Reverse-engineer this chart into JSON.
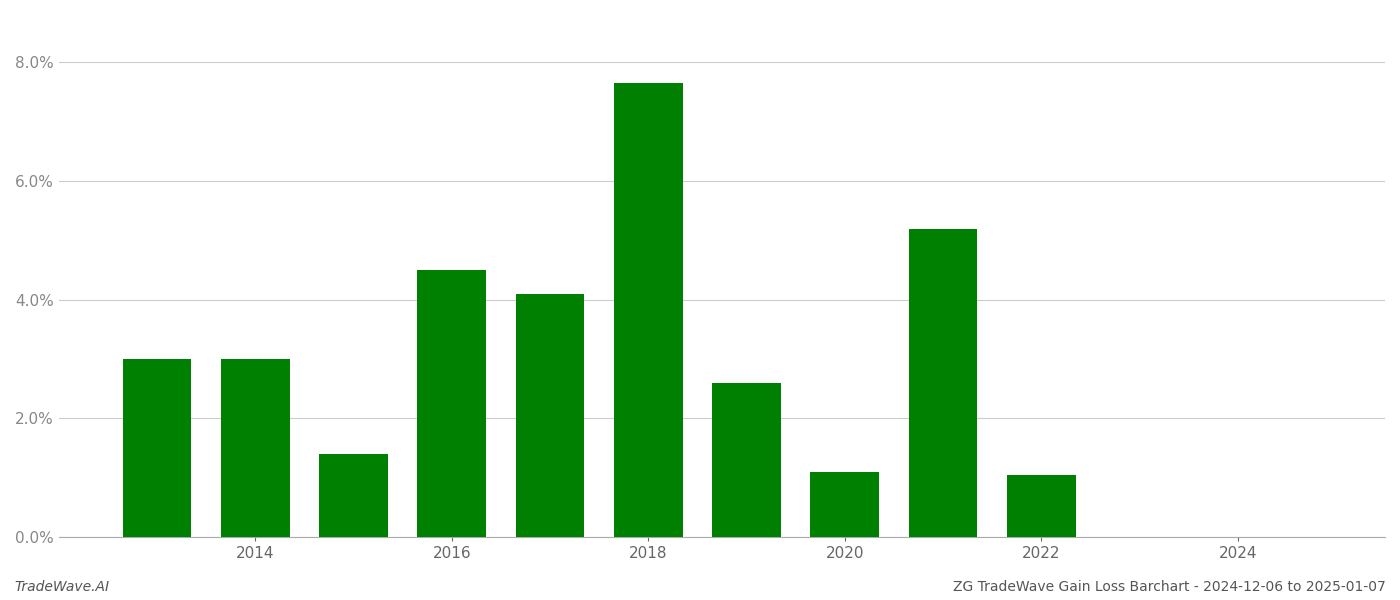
{
  "years": [
    2013,
    2014,
    2015,
    2016,
    2017,
    2018,
    2019,
    2020,
    2021,
    2022,
    2023
  ],
  "values": [
    0.03,
    0.03,
    0.014,
    0.045,
    0.041,
    0.0765,
    0.026,
    0.011,
    0.052,
    0.0105,
    0.0
  ],
  "bar_color": "#008000",
  "background_color": "#ffffff",
  "grid_color": "#cccccc",
  "footer_left": "TradeWave.AI",
  "footer_right": "ZG TradeWave Gain Loss Barchart - 2024-12-06 to 2025-01-07",
  "ylim": [
    0,
    0.088
  ],
  "yticks": [
    0.0,
    0.02,
    0.04,
    0.06,
    0.08
  ],
  "xtick_labels": [
    "2014",
    "2016",
    "2018",
    "2020",
    "2022",
    "2024"
  ],
  "xtick_positions": [
    2014,
    2016,
    2018,
    2020,
    2022,
    2024
  ],
  "xlim_left": 2012.0,
  "xlim_right": 2025.5
}
